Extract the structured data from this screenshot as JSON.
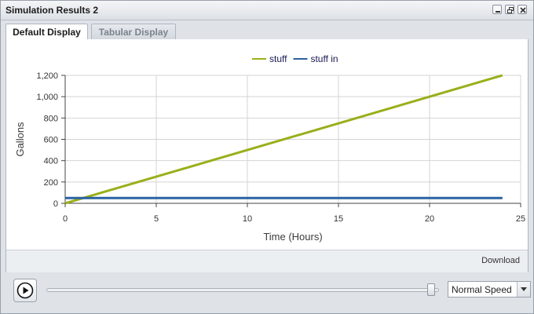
{
  "window": {
    "title": "Simulation Results 2"
  },
  "window_tools": [
    "minimize-icon",
    "restore-icon",
    "close-icon"
  ],
  "tabs": [
    {
      "label": "Default Display",
      "active": true
    },
    {
      "label": "Tabular Display",
      "active": false
    }
  ],
  "chart_data": {
    "type": "line",
    "xlabel": "Time (Hours)",
    "ylabel": "Gallons",
    "xlim": [
      0,
      25
    ],
    "ylim": [
      0,
      1200
    ],
    "x_ticks": [
      0,
      5,
      10,
      15,
      20,
      25
    ],
    "y_ticks": [
      0,
      200,
      400,
      600,
      800,
      1000,
      1200
    ],
    "x_tick_labels": [
      "0",
      "5",
      "10",
      "15",
      "20",
      "25"
    ],
    "y_tick_labels": [
      "0",
      "200",
      "400",
      "600",
      "800",
      "1,000",
      "1,200"
    ],
    "grid": true,
    "legend_position": "top-center",
    "series": [
      {
        "name": "stuff",
        "color": "#9aaf1a",
        "x": [
          0,
          24
        ],
        "y": [
          0,
          1200
        ]
      },
      {
        "name": "stuff in",
        "color": "#2a62a0",
        "x": [
          0,
          24
        ],
        "y": [
          50,
          50
        ]
      }
    ]
  },
  "footer": {
    "download_label": "Download"
  },
  "controls": {
    "play_icon": "play-icon",
    "slider_value": 0.99,
    "speed_selected": "Normal Speed"
  }
}
